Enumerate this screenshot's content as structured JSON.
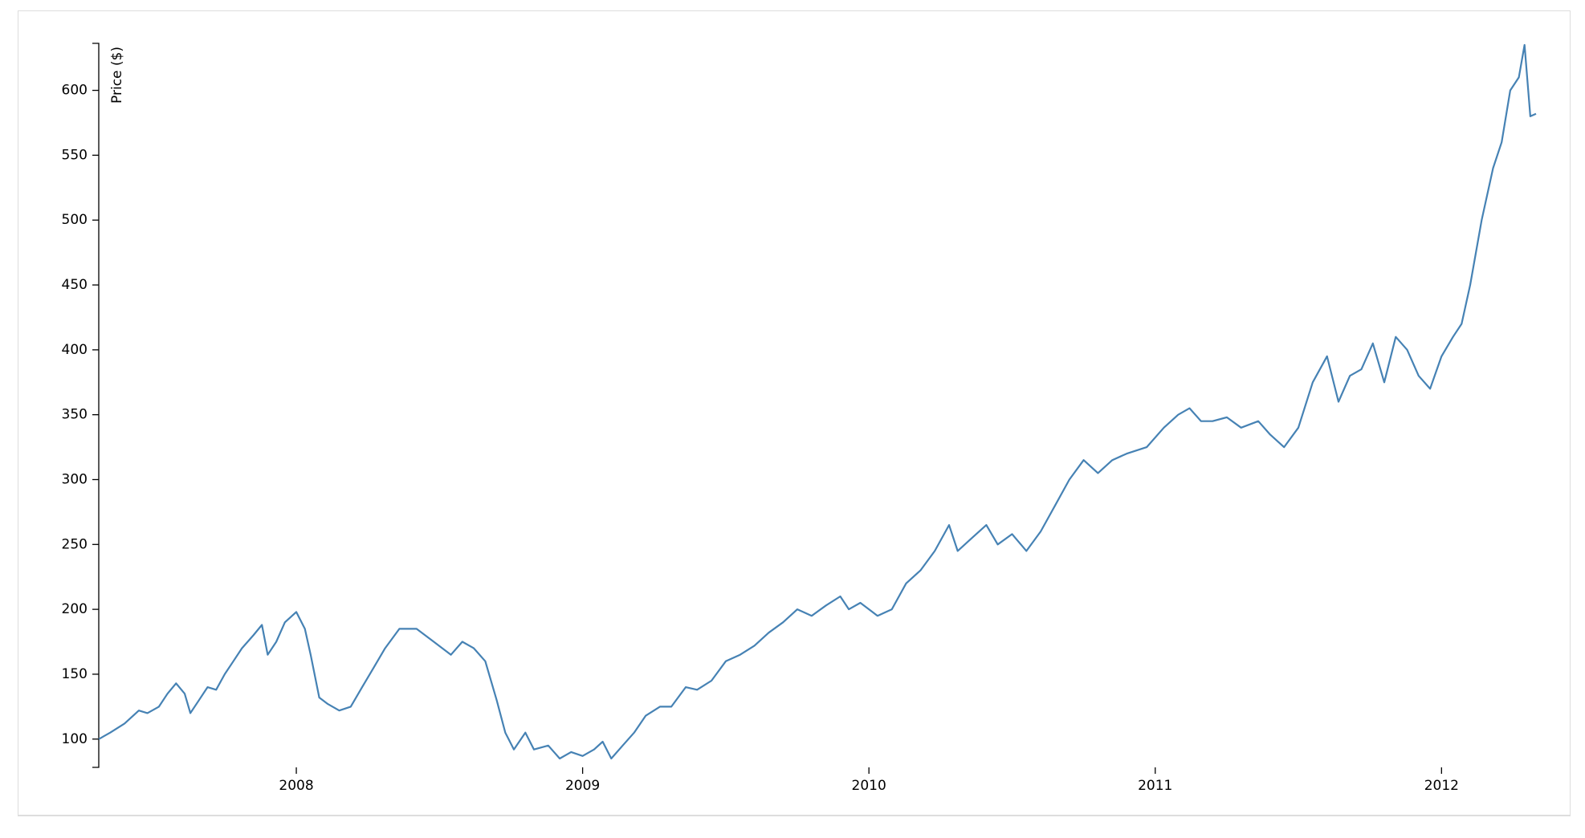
{
  "chart_data": {
    "type": "line",
    "y_label": "Price ($)",
    "color": "#4682b4",
    "x": [
      2007.31,
      2007.35,
      2007.4,
      2007.45,
      2007.48,
      2007.52,
      2007.55,
      2007.58,
      2007.61,
      2007.63,
      2007.66,
      2007.69,
      2007.72,
      2007.75,
      2007.78,
      2007.81,
      2007.85,
      2007.88,
      2007.9,
      2007.93,
      2007.96,
      2008.0,
      2008.03,
      2008.05,
      2008.08,
      2008.11,
      2008.15,
      2008.19,
      2008.23,
      2008.27,
      2008.31,
      2008.36,
      2008.42,
      2008.48,
      2008.54,
      2008.58,
      2008.62,
      2008.66,
      2008.7,
      2008.73,
      2008.76,
      2008.8,
      2008.83,
      2008.88,
      2008.92,
      2008.96,
      2009.0,
      2009.04,
      2009.07,
      2009.1,
      2009.14,
      2009.18,
      2009.22,
      2009.27,
      2009.31,
      2009.36,
      2009.4,
      2009.45,
      2009.5,
      2009.55,
      2009.6,
      2009.65,
      2009.7,
      2009.75,
      2009.8,
      2009.85,
      2009.9,
      2009.93,
      2009.97,
      2010.03,
      2010.08,
      2010.13,
      2010.18,
      2010.23,
      2010.28,
      2010.31,
      2010.36,
      2010.41,
      2010.45,
      2010.5,
      2010.55,
      2010.6,
      2010.65,
      2010.7,
      2010.75,
      2010.8,
      2010.85,
      2010.9,
      2010.97,
      2011.03,
      2011.08,
      2011.12,
      2011.16,
      2011.2,
      2011.25,
      2011.3,
      2011.36,
      2011.4,
      2011.45,
      2011.5,
      2011.55,
      2011.6,
      2011.64,
      2011.68,
      2011.72,
      2011.76,
      2011.8,
      2011.84,
      2011.88,
      2011.92,
      2011.96,
      2012.0,
      2012.04,
      2012.07,
      2012.1,
      2012.14,
      2012.18,
      2012.21,
      2012.24,
      2012.27,
      2012.29,
      2012.31,
      2012.33
    ],
    "values": [
      100,
      105,
      112,
      122,
      120,
      125,
      135,
      143,
      135,
      120,
      130,
      140,
      138,
      150,
      160,
      170,
      180,
      188,
      165,
      175,
      190,
      198,
      185,
      165,
      132,
      127,
      122,
      125,
      140,
      155,
      170,
      185,
      185,
      175,
      165,
      175,
      170,
      160,
      130,
      105,
      92,
      105,
      92,
      95,
      85,
      90,
      87,
      92,
      98,
      85,
      95,
      105,
      118,
      125,
      125,
      140,
      138,
      145,
      160,
      165,
      172,
      182,
      190,
      200,
      195,
      203,
      210,
      200,
      205,
      195,
      200,
      220,
      230,
      245,
      265,
      245,
      255,
      265,
      250,
      258,
      245,
      260,
      280,
      300,
      315,
      305,
      315,
      320,
      325,
      340,
      350,
      355,
      345,
      345,
      348,
      340,
      345,
      335,
      325,
      340,
      375,
      395,
      360,
      380,
      385,
      405,
      375,
      410,
      400,
      380,
      370,
      395,
      410,
      420,
      450,
      500,
      540,
      560,
      600,
      610,
      635,
      580,
      582
    ],
    "xlim": [
      2007.31,
      2012.33
    ],
    "xticks": [
      2008,
      2009,
      2010,
      2011,
      2012
    ],
    "ylim": [
      78.2,
      636.23
    ],
    "yticks": [
      100,
      150,
      200,
      250,
      300,
      350,
      400,
      450,
      500,
      550,
      600
    ]
  }
}
